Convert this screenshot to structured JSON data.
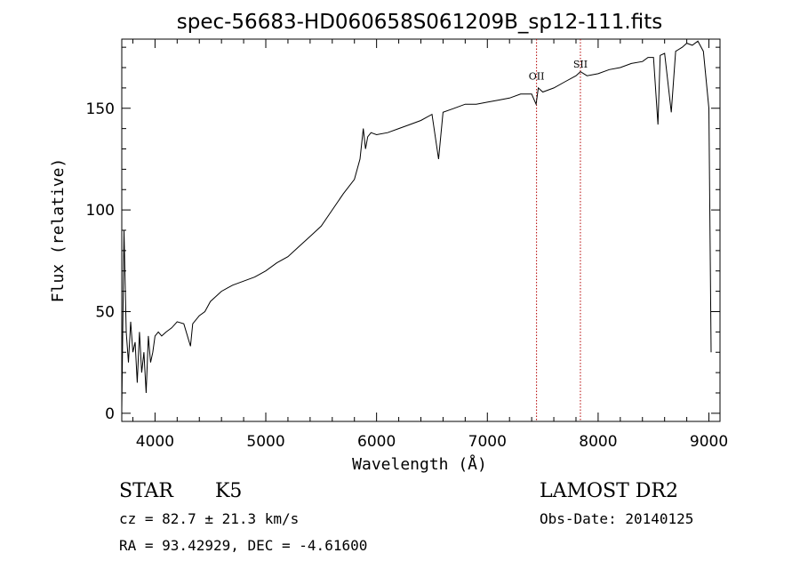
{
  "chart_data": {
    "type": "line",
    "title": "spec-56683-HD060658S061209B_sp12-111.fits",
    "xlabel": "Wavelength (Å)",
    "ylabel": "Flux (relative)",
    "xlim": [
      3700,
      9100
    ],
    "ylim": [
      -4,
      184
    ],
    "xticks": [
      4000,
      5000,
      6000,
      7000,
      8000,
      9000
    ],
    "yticks": [
      0,
      50,
      100,
      150
    ],
    "grid": false,
    "series": [
      {
        "x": [
          3700,
          3720,
          3740,
          3760,
          3780,
          3800,
          3820,
          3840,
          3860,
          3880,
          3900,
          3920,
          3940,
          3960,
          3980,
          4000,
          4030,
          4060,
          4100,
          4150,
          4200,
          4260,
          4320,
          4340,
          4400,
          4450,
          4500,
          4600,
          4700,
          4800,
          4900,
          5000,
          5100,
          5200,
          5300,
          5400,
          5500,
          5600,
          5700,
          5800,
          5850,
          5880,
          5900,
          5920,
          5950,
          6000,
          6100,
          6200,
          6300,
          6400,
          6500,
          6560,
          6600,
          6700,
          6800,
          6900,
          7000,
          7100,
          7200,
          7300,
          7400,
          7440,
          7460,
          7500,
          7600,
          7700,
          7800,
          7840,
          7900,
          8000,
          8100,
          8200,
          8300,
          8400,
          8450,
          8500,
          8540,
          8560,
          8600,
          8660,
          8700,
          8760,
          8800,
          8850,
          8900,
          8950,
          9000,
          9020
        ],
        "y": [
          2,
          90,
          40,
          25,
          45,
          30,
          35,
          15,
          40,
          20,
          30,
          10,
          38,
          25,
          30,
          38,
          40,
          38,
          40,
          42,
          45,
          44,
          33,
          44,
          48,
          50,
          55,
          60,
          63,
          65,
          67,
          70,
          74,
          77,
          82,
          87,
          92,
          100,
          108,
          115,
          125,
          140,
          130,
          136,
          138,
          137,
          138,
          140,
          142,
          144,
          147,
          125,
          148,
          150,
          152,
          152,
          153,
          154,
          155,
          157,
          157,
          152,
          160,
          158,
          160,
          163,
          166,
          168,
          166,
          167,
          169,
          170,
          172,
          173,
          175,
          175,
          142,
          176,
          177,
          148,
          178,
          180,
          182,
          181,
          183,
          178,
          150,
          30
        ]
      }
    ],
    "annotations": [
      {
        "text": "OII",
        "x": 7444,
        "y": 164
      },
      {
        "text": "SII",
        "x": 7840,
        "y": 170
      }
    ],
    "reference_lines_x": [
      7444,
      7840
    ]
  },
  "info": {
    "object_type": "STAR",
    "subclass": "K5",
    "cz": "cz = 82.7 ± 21.3 km/s",
    "coords": "RA =  93.42929, DEC =  -4.61600",
    "survey": "LAMOST DR2",
    "obs_date": "Obs-Date: 20140125"
  },
  "colors": {
    "line": "#000000",
    "reference_line": "#b40000",
    "background": "#ffffff"
  }
}
